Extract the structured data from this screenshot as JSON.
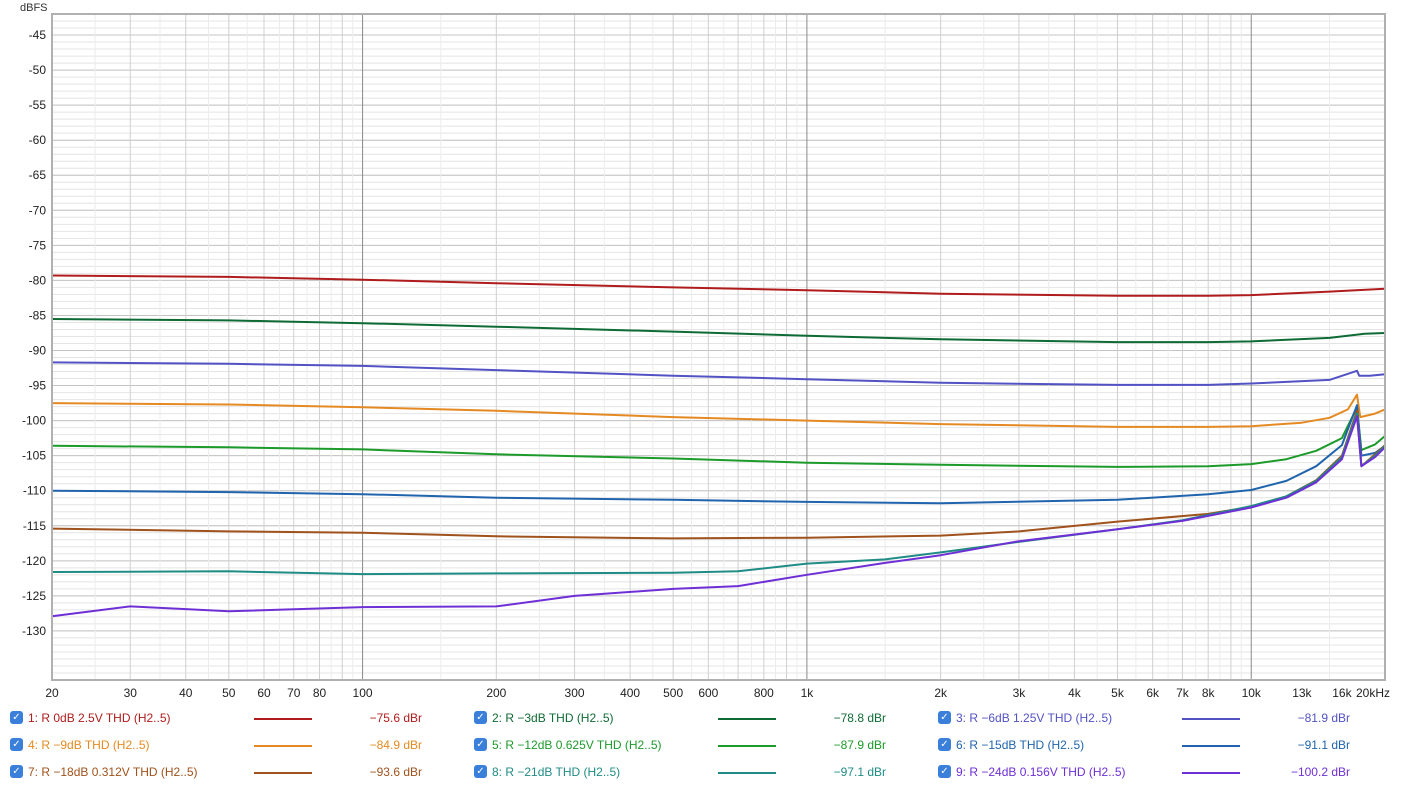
{
  "chart_data": {
    "type": "line",
    "ylabel": "dBFS",
    "x_scale": "log",
    "xlim": [
      20,
      20000
    ],
    "ylim": [
      -137,
      -42
    ],
    "yticks": [
      -45,
      -50,
      -55,
      -60,
      -65,
      -70,
      -75,
      -80,
      -85,
      -90,
      -95,
      -100,
      -105,
      -110,
      -115,
      -120,
      -125,
      -130
    ],
    "xticks": [
      {
        "v": 20,
        "label": "20"
      },
      {
        "v": 30,
        "label": "30"
      },
      {
        "v": 40,
        "label": "40"
      },
      {
        "v": 50,
        "label": "50"
      },
      {
        "v": 60,
        "label": "60"
      },
      {
        "v": 70,
        "label": "70"
      },
      {
        "v": 80,
        "label": "80"
      },
      {
        "v": 100,
        "label": "100"
      },
      {
        "v": 200,
        "label": "200"
      },
      {
        "v": 300,
        "label": "300"
      },
      {
        "v": 400,
        "label": "400"
      },
      {
        "v": 500,
        "label": "500"
      },
      {
        "v": 600,
        "label": "600"
      },
      {
        "v": 800,
        "label": "800"
      },
      {
        "v": 1000,
        "label": "1k"
      },
      {
        "v": 2000,
        "label": "2k"
      },
      {
        "v": 3000,
        "label": "3k"
      },
      {
        "v": 4000,
        "label": "4k"
      },
      {
        "v": 5000,
        "label": "5k"
      },
      {
        "v": 6000,
        "label": "6k"
      },
      {
        "v": 7000,
        "label": "7k"
      },
      {
        "v": 8000,
        "label": "8k"
      },
      {
        "v": 10000,
        "label": "10k"
      },
      {
        "v": 13000,
        "label": "13k"
      },
      {
        "v": 16000,
        "label": "16k"
      },
      {
        "v": 20000,
        "label": "20kHz"
      }
    ],
    "series": [
      {
        "name": "1: R 0dB 2.5V THD (H2..5)",
        "value_label": "−75.6 dBr",
        "color": "#b01c1c",
        "points": [
          [
            20,
            -79.3
          ],
          [
            50,
            -79.5
          ],
          [
            100,
            -79.9
          ],
          [
            200,
            -80.4
          ],
          [
            500,
            -81
          ],
          [
            1000,
            -81.4
          ],
          [
            2000,
            -81.9
          ],
          [
            5000,
            -82.2
          ],
          [
            8000,
            -82.2
          ],
          [
            10000,
            -82.1
          ],
          [
            15000,
            -81.6
          ],
          [
            20000,
            -81.2
          ]
        ]
      },
      {
        "name": "2: R −3dB THD (H2..5)",
        "value_label": "−78.8 dBr",
        "color": "#0f6b35",
        "points": [
          [
            20,
            -85.5
          ],
          [
            50,
            -85.7
          ],
          [
            100,
            -86.1
          ],
          [
            200,
            -86.6
          ],
          [
            500,
            -87.3
          ],
          [
            1000,
            -87.9
          ],
          [
            2000,
            -88.4
          ],
          [
            5000,
            -88.8
          ],
          [
            8000,
            -88.8
          ],
          [
            10000,
            -88.7
          ],
          [
            15000,
            -88.2
          ],
          [
            18000,
            -87.6
          ],
          [
            20000,
            -87.5
          ]
        ]
      },
      {
        "name": "3: R −6dB 1.25V THD (H2..5)",
        "value_label": "−81.9 dBr",
        "color": "#5252c4",
        "points": [
          [
            20,
            -91.7
          ],
          [
            50,
            -91.9
          ],
          [
            100,
            -92.2
          ],
          [
            200,
            -92.8
          ],
          [
            500,
            -93.6
          ],
          [
            1000,
            -94.1
          ],
          [
            2000,
            -94.6
          ],
          [
            5000,
            -94.9
          ],
          [
            8000,
            -94.9
          ],
          [
            10000,
            -94.7
          ],
          [
            15000,
            -94.2
          ],
          [
            17300,
            -92.9
          ],
          [
            17500,
            -93.6
          ],
          [
            18500,
            -93.6
          ],
          [
            20000,
            -93.4
          ]
        ]
      },
      {
        "name": "4: R −9dB THD (H2..5)",
        "value_label": "−84.9 dBr",
        "color": "#e58a22",
        "points": [
          [
            20,
            -97.5
          ],
          [
            50,
            -97.7
          ],
          [
            100,
            -98.1
          ],
          [
            200,
            -98.6
          ],
          [
            500,
            -99.5
          ],
          [
            1000,
            -100
          ],
          [
            2000,
            -100.5
          ],
          [
            5000,
            -100.9
          ],
          [
            8000,
            -100.9
          ],
          [
            10000,
            -100.8
          ],
          [
            13000,
            -100.3
          ],
          [
            15000,
            -99.6
          ],
          [
            16500,
            -98.4
          ],
          [
            17300,
            -96.3
          ],
          [
            17600,
            -99.5
          ],
          [
            19000,
            -99
          ],
          [
            20000,
            -98.4
          ]
        ]
      },
      {
        "name": "5: R −12dB 0.625V THD (H2..5)",
        "value_label": "−87.9 dBr",
        "color": "#1c9b2b",
        "points": [
          [
            20,
            -103.6
          ],
          [
            50,
            -103.8
          ],
          [
            100,
            -104.1
          ],
          [
            200,
            -104.8
          ],
          [
            500,
            -105.4
          ],
          [
            1000,
            -106
          ],
          [
            2000,
            -106.3
          ],
          [
            5000,
            -106.6
          ],
          [
            8000,
            -106.5
          ],
          [
            10000,
            -106.2
          ],
          [
            12000,
            -105.5
          ],
          [
            14000,
            -104.3
          ],
          [
            16000,
            -102.5
          ],
          [
            17300,
            -98.1
          ],
          [
            17700,
            -104.2
          ],
          [
            19000,
            -103.4
          ],
          [
            20000,
            -102.2
          ]
        ]
      },
      {
        "name": "6: R −15dB THD (H2..5)",
        "value_label": "−91.1 dBr",
        "color": "#1f64ad",
        "points": [
          [
            20,
            -110
          ],
          [
            50,
            -110.2
          ],
          [
            100,
            -110.5
          ],
          [
            200,
            -111
          ],
          [
            500,
            -111.3
          ],
          [
            1000,
            -111.6
          ],
          [
            2000,
            -111.8
          ],
          [
            5000,
            -111.3
          ],
          [
            8000,
            -110.5
          ],
          [
            10000,
            -109.9
          ],
          [
            12000,
            -108.6
          ],
          [
            14000,
            -106.5
          ],
          [
            16000,
            -103.5
          ],
          [
            17300,
            -97.8
          ],
          [
            17700,
            -105
          ],
          [
            19000,
            -104.6
          ],
          [
            20000,
            -103.6
          ]
        ]
      },
      {
        "name": "7: R −18dB 0.312V THD (H2..5)",
        "value_label": "−93.6 dBr",
        "color": "#a0521c",
        "points": [
          [
            20,
            -115.4
          ],
          [
            50,
            -115.8
          ],
          [
            100,
            -116
          ],
          [
            200,
            -116.5
          ],
          [
            500,
            -116.8
          ],
          [
            1000,
            -116.7
          ],
          [
            2000,
            -116.4
          ],
          [
            3000,
            -115.8
          ],
          [
            5000,
            -114.4
          ],
          [
            8000,
            -113.3
          ],
          [
            10000,
            -112.3
          ],
          [
            12000,
            -110.8
          ],
          [
            14000,
            -108.5
          ],
          [
            16000,
            -105
          ],
          [
            17300,
            -98.6
          ],
          [
            17700,
            -106.5
          ],
          [
            19000,
            -104.8
          ],
          [
            20000,
            -103.5
          ]
        ]
      },
      {
        "name": "8: R −21dB THD (H2..5)",
        "value_label": "−97.1 dBr",
        "color": "#1f8c85",
        "points": [
          [
            20,
            -121.6
          ],
          [
            50,
            -121.5
          ],
          [
            100,
            -121.9
          ],
          [
            200,
            -121.8
          ],
          [
            500,
            -121.7
          ],
          [
            700,
            -121.5
          ],
          [
            1000,
            -120.4
          ],
          [
            1500,
            -119.8
          ],
          [
            2000,
            -118.8
          ],
          [
            3000,
            -117.3
          ],
          [
            5000,
            -115.5
          ],
          [
            7000,
            -114.2
          ],
          [
            10000,
            -112.2
          ],
          [
            12000,
            -110.8
          ],
          [
            14000,
            -108.6
          ],
          [
            16000,
            -105.2
          ],
          [
            17300,
            -99
          ],
          [
            17700,
            -106.5
          ],
          [
            19000,
            -105
          ],
          [
            20000,
            -103.6
          ]
        ]
      },
      {
        "name": "9: R −24dB 0.156V THD (H2..5)",
        "value_label": "−100.2 dBr",
        "color": "#6f2fd6",
        "points": [
          [
            20,
            -127.9
          ],
          [
            30,
            -126.5
          ],
          [
            50,
            -127.2
          ],
          [
            100,
            -126.6
          ],
          [
            200,
            -126.5
          ],
          [
            300,
            -125
          ],
          [
            500,
            -124
          ],
          [
            700,
            -123.6
          ],
          [
            1000,
            -122
          ],
          [
            1500,
            -120.3
          ],
          [
            2000,
            -119.2
          ],
          [
            3000,
            -117.2
          ],
          [
            5000,
            -115.5
          ],
          [
            7000,
            -114.3
          ],
          [
            10000,
            -112.4
          ],
          [
            12000,
            -111
          ],
          [
            14000,
            -108.8
          ],
          [
            16000,
            -105.5
          ],
          [
            17300,
            -99.4
          ],
          [
            17700,
            -106.5
          ],
          [
            19000,
            -105.2
          ],
          [
            20000,
            -103.8
          ]
        ]
      }
    ]
  }
}
